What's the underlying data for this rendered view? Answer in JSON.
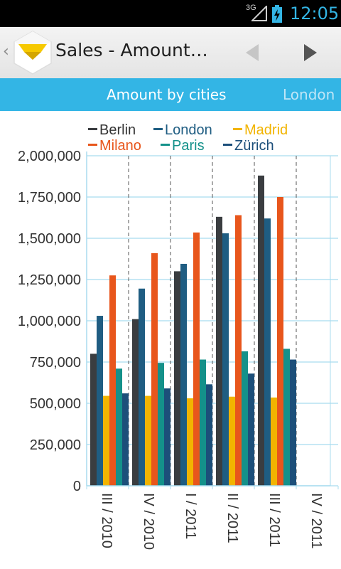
{
  "status_bar": {
    "network": "3G",
    "time": "12:05"
  },
  "action_bar": {
    "title": "Sales - Amount…",
    "logo_icon": "diamond-logo-icon"
  },
  "tabs": {
    "active": "Amount by cities",
    "next": "London"
  },
  "colors": {
    "accent": "#33b5e5"
  },
  "chart_data": {
    "type": "bar",
    "title": "",
    "xlabel": "",
    "ylabel": "",
    "ylim": [
      0,
      2000000
    ],
    "yticks": [
      0,
      250000,
      500000,
      750000,
      1000000,
      1250000,
      1500000,
      1750000,
      2000000
    ],
    "ytick_labels": [
      "0",
      "250,000",
      "500,000",
      "750,000",
      "1,000,000",
      "1,250,000",
      "1,500,000",
      "1,750,000",
      "2,000,000"
    ],
    "categories": [
      "III / 2010",
      "IV / 2010",
      "I / 2011",
      "II / 2011",
      "III / 2011",
      "IV / 2011"
    ],
    "legend_position": "top",
    "grid": true,
    "series": [
      {
        "name": "Berlin",
        "color": "#3a3d40",
        "values": [
          800000,
          1010000,
          1300000,
          1630000,
          1880000,
          null
        ]
      },
      {
        "name": "London",
        "color": "#1f5d82",
        "values": [
          1030000,
          1195000,
          1345000,
          1530000,
          1620000,
          null
        ]
      },
      {
        "name": "Madrid",
        "color": "#f2b400",
        "values": [
          545000,
          545000,
          530000,
          540000,
          535000,
          null
        ]
      },
      {
        "name": "Milano",
        "color": "#e8561c",
        "values": [
          1275000,
          1410000,
          1535000,
          1640000,
          1750000,
          null
        ]
      },
      {
        "name": "Paris",
        "color": "#14918a",
        "values": [
          710000,
          745000,
          765000,
          815000,
          830000,
          null
        ]
      },
      {
        "name": "Zürich",
        "color": "#1c4f7a",
        "values": [
          560000,
          590000,
          615000,
          680000,
          765000,
          null
        ]
      }
    ]
  }
}
